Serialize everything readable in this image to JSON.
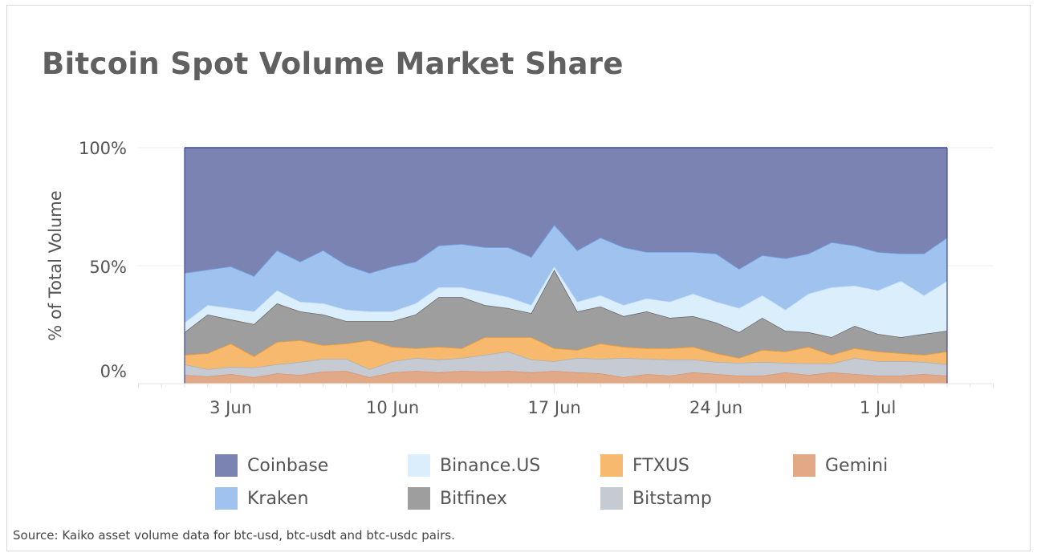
{
  "title": "Bitcoin Spot Volume Market Share",
  "source": "Source: Kaiko asset volume data for btc-usd, btc-usdt and btc-usdc pairs.",
  "chart_data": {
    "type": "area",
    "stacked": true,
    "normalized": true,
    "title": "Bitcoin Spot Volume Market Share",
    "ylabel": "% of Total Volume",
    "xlabel": "",
    "ylim": [
      0,
      100
    ],
    "y_ticks": [
      "0%",
      "50%",
      "100%"
    ],
    "x_tick_labels": [
      "3 Jun",
      "10 Jun",
      "17 Jun",
      "24 Jun",
      "1 Jul"
    ],
    "x": [
      "1 Jun",
      "2 Jun",
      "3 Jun",
      "4 Jun",
      "5 Jun",
      "6 Jun",
      "7 Jun",
      "8 Jun",
      "9 Jun",
      "10 Jun",
      "11 Jun",
      "12 Jun",
      "13 Jun",
      "14 Jun",
      "15 Jun",
      "16 Jun",
      "17 Jun",
      "18 Jun",
      "19 Jun",
      "20 Jun",
      "21 Jun",
      "22 Jun",
      "23 Jun",
      "24 Jun",
      "25 Jun",
      "26 Jun",
      "27 Jun",
      "28 Jun",
      "29 Jun",
      "30 Jun",
      "1 Jul",
      "2 Jul",
      "3 Jul",
      "4 Jul"
    ],
    "grid": true,
    "legend_position": "bottom",
    "series": [
      {
        "name": "Gemini",
        "color": "#e2a986",
        "line": "#d4977a",
        "values": [
          3.7,
          3.1,
          4.1,
          2.7,
          4.4,
          3.7,
          5.1,
          5.4,
          2.7,
          4.8,
          5.4,
          4.8,
          5.4,
          5.1,
          5.4,
          4.8,
          5.4,
          4.8,
          4.4,
          2.7,
          4.1,
          3.4,
          4.8,
          4.1,
          3.4,
          3.4,
          4.8,
          3.7,
          4.8,
          4.1,
          3.4,
          3.4,
          4.1,
          3.4
        ]
      },
      {
        "name": "Bitstamp",
        "color": "#c6cbd3",
        "line": "#aab0ba",
        "values": [
          4.5,
          3.0,
          3.0,
          4.1,
          3.8,
          5.5,
          5.4,
          5.1,
          3.4,
          4.7,
          5.5,
          5.4,
          5.5,
          7.1,
          8.2,
          5.4,
          4.1,
          6.1,
          6.1,
          8.2,
          6.4,
          6.8,
          5.4,
          5.1,
          5.4,
          5.8,
          4.0,
          4.8,
          3.7,
          6.8,
          6.1,
          6.1,
          5.1,
          4.8
        ]
      },
      {
        "name": "FTXUS",
        "color": "#f6b96d",
        "line": "#f09a30",
        "values": [
          4.0,
          6.8,
          9.9,
          4.8,
          9.5,
          9.2,
          5.8,
          6.5,
          12.3,
          6.1,
          4.1,
          5.4,
          4.1,
          7.5,
          6.1,
          9.5,
          5.5,
          3.4,
          6.5,
          4.7,
          4.5,
          4.8,
          5.4,
          3.7,
          2.1,
          5.1,
          4.8,
          7.1,
          3.7,
          4.1,
          4.1,
          3.4,
          3.0,
          5.4
        ]
      },
      {
        "name": "Bitfinex",
        "color": "#9e9e9e",
        "line": "#6b6b6b",
        "values": [
          9.6,
          16.4,
          10.2,
          13.6,
          16.3,
          12.2,
          13.0,
          9.5,
          8.1,
          10.9,
          14.3,
          21.1,
          21.7,
          13.6,
          12.3,
          10.2,
          33.3,
          16.3,
          15.7,
          13.0,
          15.6,
          12.9,
          13.0,
          13.0,
          10.9,
          13.6,
          8.8,
          6.2,
          7.5,
          9.5,
          7.5,
          6.8,
          8.9,
          8.8
        ]
      },
      {
        "name": "Binance.US",
        "color": "#dbeefc",
        "line": "#c8e2f7",
        "values": [
          4.1,
          4.0,
          4.8,
          5.4,
          5.5,
          4.1,
          4.7,
          4.8,
          4.1,
          4.1,
          4.7,
          4.1,
          4.1,
          5.5,
          4.7,
          3.4,
          1.4,
          4.1,
          4.7,
          4.7,
          5.5,
          6.8,
          9.5,
          8.8,
          10.2,
          9.5,
          8.9,
          16.3,
          21.1,
          17.0,
          18.4,
          23.8,
          16.3,
          21.1
        ]
      },
      {
        "name": "Kraken",
        "color": "#9fc2ef",
        "line": "#6fa3e8",
        "values": [
          21.0,
          15.0,
          17.7,
          15.0,
          17.0,
          17.0,
          22.5,
          19.0,
          16.3,
          19.1,
          17.7,
          17.7,
          18.4,
          19.0,
          21.1,
          20.4,
          17.6,
          21.8,
          24.5,
          24.5,
          19.7,
          21.1,
          17.7,
          20.4,
          16.6,
          17.0,
          21.8,
          17.0,
          19.1,
          17.0,
          16.3,
          11.6,
          17.7,
          18.4
        ]
      },
      {
        "name": "Coinbase",
        "color": "#7b83b3",
        "line": "#3d4b9c",
        "values": [
          53.1,
          51.7,
          50.3,
          54.4,
          43.5,
          48.3,
          43.5,
          49.7,
          53.1,
          50.3,
          48.3,
          41.5,
          40.8,
          42.2,
          42.2,
          46.3,
          32.7,
          43.5,
          38.1,
          42.2,
          44.2,
          44.2,
          44.2,
          44.9,
          51.4,
          45.6,
          46.9,
          44.9,
          40.1,
          41.5,
          44.2,
          44.9,
          44.9,
          38.1
        ]
      }
    ],
    "legend_order": [
      "Coinbase",
      "Binance.US",
      "FTXUS",
      "Gemini",
      "Kraken",
      "Bitfinex",
      "Bitstamp"
    ]
  }
}
